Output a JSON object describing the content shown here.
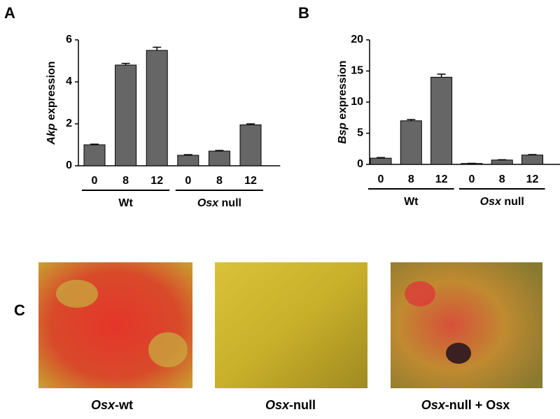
{
  "panel_labels": [
    "A",
    "B",
    "C"
  ],
  "chart_data": [
    {
      "type": "bar",
      "ylabel": [
        "Akp",
        " expression"
      ],
      "color": "#666666",
      "ylim": [
        0,
        6
      ],
      "yticks": [
        0,
        2,
        4,
        6
      ],
      "groups": [
        {
          "name": "Wt",
          "categories": [
            "0",
            "8",
            "12"
          ],
          "values": [
            1.0,
            4.8,
            5.5
          ],
          "errors": [
            0.03,
            0.08,
            0.15
          ]
        },
        {
          "name": [
            "Osx",
            " null"
          ],
          "categories": [
            "0",
            "8",
            "12"
          ],
          "values": [
            0.5,
            0.7,
            1.95
          ],
          "errors": [
            0.03,
            0.03,
            0.05
          ]
        }
      ]
    },
    {
      "type": "bar",
      "ylabel": [
        "Bsp",
        " expression"
      ],
      "color": "#666666",
      "ylim": [
        0,
        20
      ],
      "yticks": [
        0,
        5,
        10,
        15,
        20
      ],
      "groups": [
        {
          "name": "Wt",
          "categories": [
            "0",
            "8",
            "12"
          ],
          "values": [
            1.0,
            7.0,
            14.0
          ],
          "errors": [
            0.1,
            0.2,
            0.5
          ]
        },
        {
          "name": [
            "Osx",
            " null"
          ],
          "categories": [
            "0",
            "8",
            "12"
          ],
          "values": [
            0.15,
            0.7,
            1.5
          ],
          "errors": [
            0.02,
            0.05,
            0.08
          ]
        }
      ]
    }
  ],
  "images": [
    {
      "caption": [
        "Osx",
        "-wt"
      ]
    },
    {
      "caption": [
        "Osx",
        "-null"
      ]
    },
    {
      "caption": [
        "Osx",
        "-null + Osx"
      ]
    }
  ]
}
